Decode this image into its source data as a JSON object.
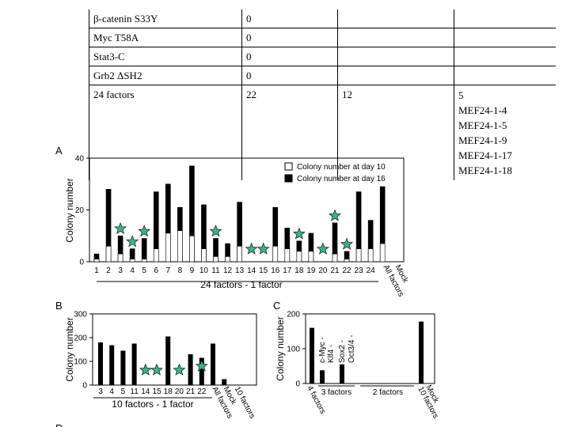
{
  "table": {
    "rows": [
      {
        "factor": "β-catenin S33Y",
        "col2": "0",
        "col3": "",
        "col4": []
      },
      {
        "factor": "Myc T58A",
        "col2": "0",
        "col3": "",
        "col4": []
      },
      {
        "factor": "Stat3-C",
        "col2": "0",
        "col3": "",
        "col4": []
      },
      {
        "factor": "Grb2 ΔSH2",
        "col2": "0",
        "col3": "",
        "col4": []
      },
      {
        "factor": "24 factors",
        "col2": "22",
        "col3": "12",
        "col4": [
          "5",
          "MEF24-1-4",
          "MEF24-1-5",
          "MEF24-1-9",
          "MEF24-1-17",
          "MEF24-1-18"
        ]
      }
    ]
  },
  "colors": {
    "star": "#3cb08c",
    "bar_day16": "#000000",
    "bar_day10": "#ffffff"
  },
  "chart_data": [
    {
      "panel": "A",
      "type": "bar",
      "title": "",
      "ylabel": "Colony number",
      "xlabel": "24 factors - 1 factor",
      "ylim": [
        0,
        40
      ],
      "yticks": [
        "0",
        "20",
        "40"
      ],
      "legend": [
        "Colony number at day 10",
        "Colony number at day 16"
      ],
      "legend_position": "top-right",
      "categories": [
        "1",
        "2",
        "3",
        "4",
        "5",
        "6",
        "7",
        "8",
        "9",
        "10",
        "11",
        "12",
        "13",
        "14",
        "15",
        "16",
        "17",
        "18",
        "19",
        "20",
        "21",
        "22",
        "23",
        "24",
        "All factors",
        "Mock"
      ],
      "series": [
        {
          "name": "Colony number at day 16",
          "values": [
            3,
            28,
            10,
            5,
            9,
            27,
            30,
            21,
            37,
            22,
            9,
            7,
            23,
            0,
            0,
            21,
            13,
            8,
            11,
            0,
            15,
            4,
            27,
            16,
            29,
            0
          ]
        },
        {
          "name": "Colony number at day 10",
          "values": [
            1,
            6,
            3,
            1,
            1,
            5,
            11,
            12,
            10,
            5,
            2,
            2,
            6,
            0,
            0,
            6,
            5,
            4,
            4,
            0,
            3,
            1,
            5,
            5,
            7,
            0
          ]
        }
      ],
      "stars": [
        "3",
        "4",
        "5",
        "11",
        "14",
        "15",
        "18",
        "20",
        "21",
        "22"
      ]
    },
    {
      "panel": "B",
      "type": "bar",
      "title": "",
      "ylabel": "Colony number",
      "xlabel": "10 factors - 1 factor",
      "ylim": [
        0,
        300
      ],
      "yticks": [
        "0",
        "100",
        "200",
        "300"
      ],
      "categories": [
        "3",
        "4",
        "5",
        "11",
        "14",
        "15",
        "18",
        "20",
        "21",
        "22",
        "All factors",
        "Mock",
        "10 factors"
      ],
      "values": [
        180,
        168,
        145,
        175,
        0,
        0,
        205,
        0,
        130,
        115,
        175,
        25,
        0
      ],
      "stars": [
        "14",
        "15",
        "20",
        "22"
      ]
    },
    {
      "panel": "C",
      "type": "bar",
      "title": "",
      "ylabel": "Colony number",
      "ylim": [
        0,
        200
      ],
      "yticks": [
        "0",
        "100",
        "200"
      ],
      "categories": [
        "4 factors",
        "c-Myc -",
        "Klf4 -",
        "Sox2 -",
        "Oct3/4 -",
        "Mock",
        "10 factors"
      ],
      "values": [
        160,
        38,
        0,
        55,
        0,
        0,
        178
      ],
      "group_labels": [
        "3 factors",
        "2 factors"
      ]
    }
  ],
  "panel_labels": {
    "A": "A",
    "B": "B",
    "C": "C",
    "D": "D"
  }
}
